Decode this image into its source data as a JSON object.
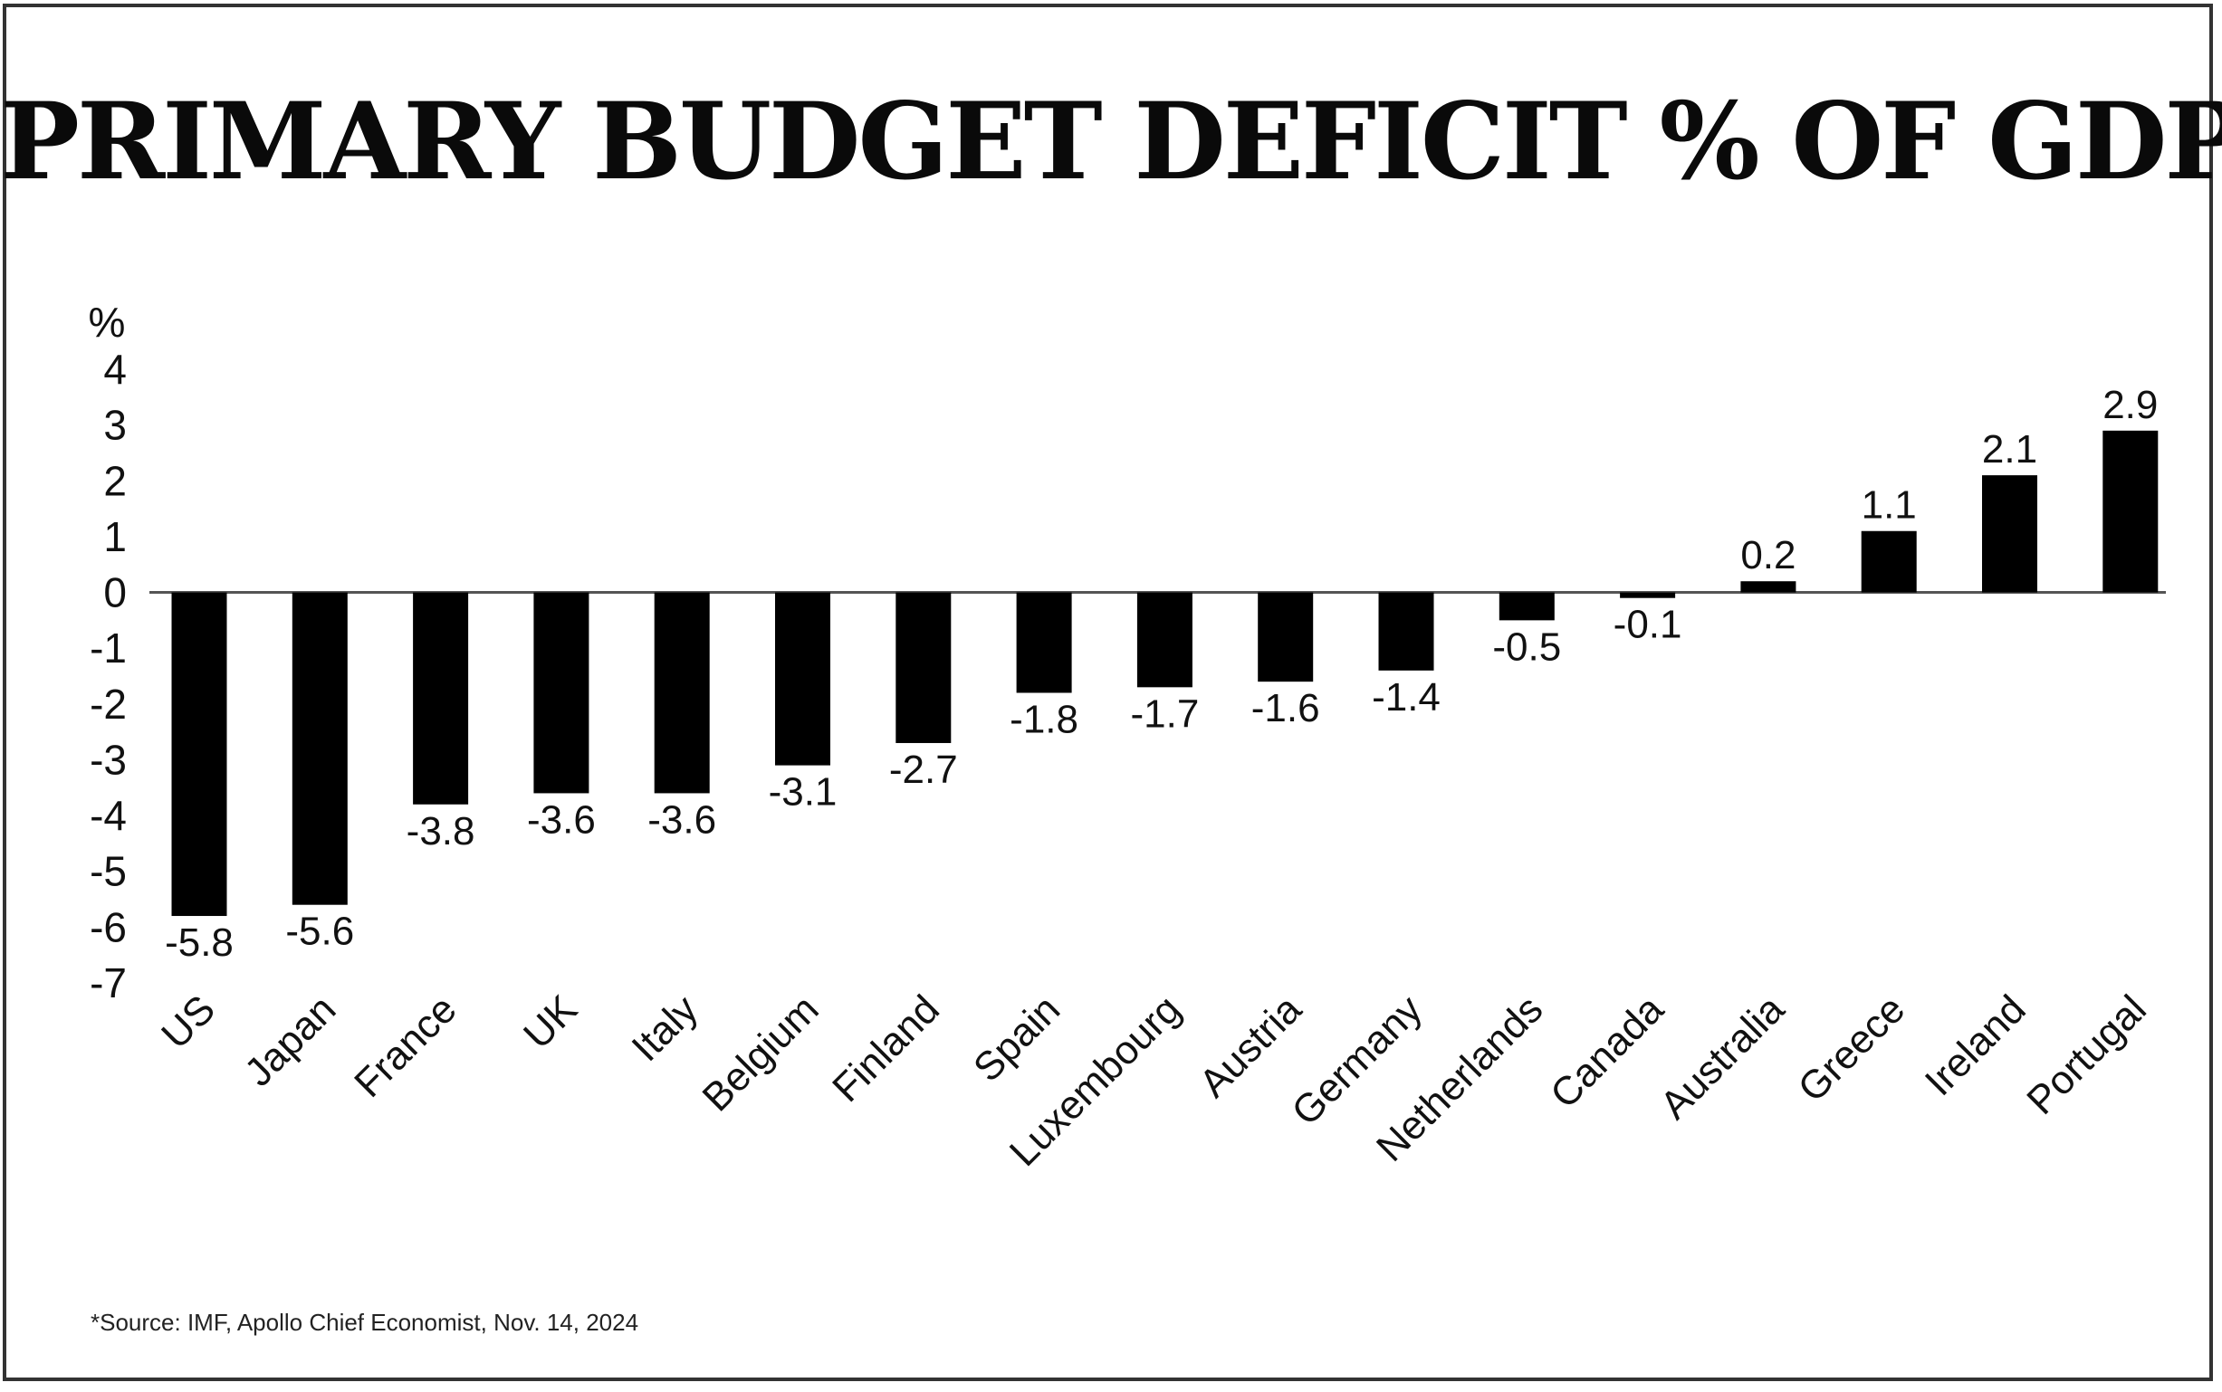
{
  "chart_data": {
    "type": "bar",
    "title": "PRIMARY BUDGET DEFICIT % OF GDP",
    "ylabel": "%",
    "xlabel": "",
    "ylim": [
      -7,
      4
    ],
    "yticks": [
      4,
      3,
      2,
      1,
      0,
      -1,
      -2,
      -3,
      -4,
      -5,
      -6,
      -7
    ],
    "grid": false,
    "categories": [
      "US",
      "Japan",
      "France",
      "UK",
      "Italy",
      "Belgium",
      "Finland",
      "Spain",
      "Luxembourg",
      "Austria",
      "Germany",
      "Netherlands",
      "Canada",
      "Australia",
      "Greece",
      "Ireland",
      "Portugal"
    ],
    "values": [
      -5.8,
      -5.6,
      -3.8,
      -3.6,
      -3.6,
      -3.1,
      -2.7,
      -1.8,
      -1.7,
      -1.6,
      -1.4,
      -0.5,
      -0.1,
      0.2,
      1.1,
      2.1,
      2.9
    ],
    "value_labels": [
      "-5.8",
      "-5.6",
      "-3.8",
      "-3.6",
      "-3.6",
      "-3.1",
      "-2.7",
      "-1.8",
      "-1.7",
      "-1.6",
      "-1.4",
      "-0.5",
      "-0.1",
      "0.2",
      "1.1",
      "2.1",
      "2.9"
    ],
    "bar_color": "#000000"
  },
  "source": "*Source: IMF, Apollo Chief Economist, Nov. 14, 2024"
}
